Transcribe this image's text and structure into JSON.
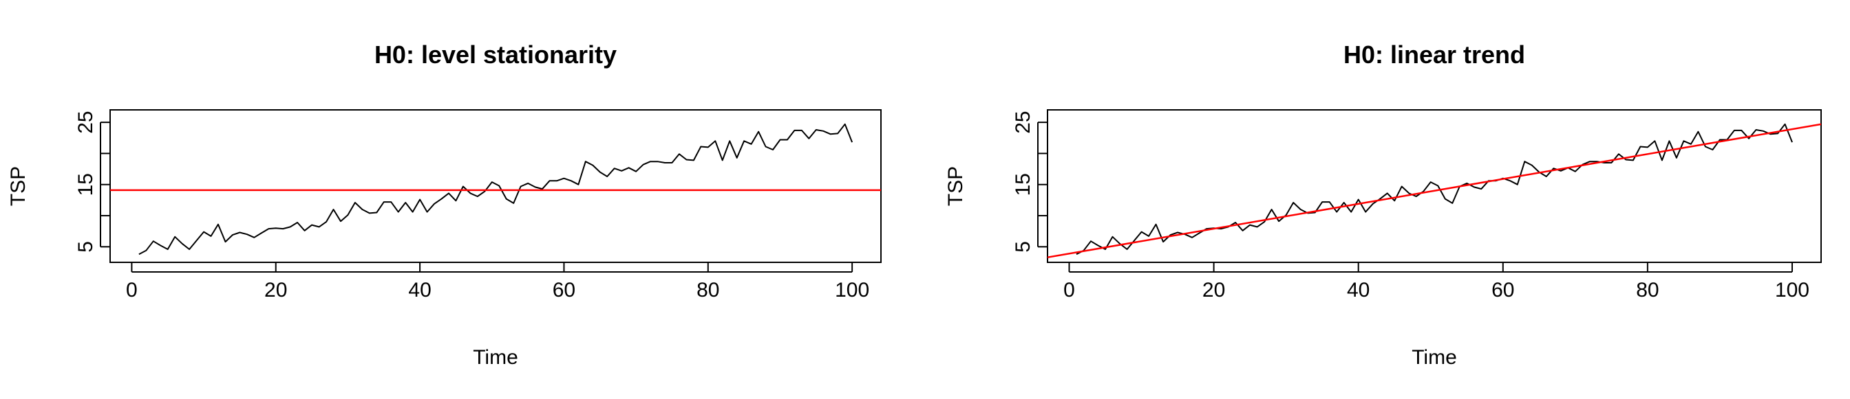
{
  "chart_data": [
    {
      "type": "line",
      "title": "H0: level stationarity",
      "xlabel": "Time",
      "ylabel": "TSP",
      "xlim": [
        -3,
        104
      ],
      "ylim": [
        2.5,
        27
      ],
      "xticks": [
        "0",
        "20",
        "40",
        "60",
        "80",
        "100"
      ],
      "yticks": [
        "5",
        "15",
        "25"
      ],
      "grid": false,
      "series": [
        {
          "color": "#000000",
          "x": [
            1,
            2,
            3,
            4,
            5,
            6,
            7,
            8,
            9,
            10,
            11,
            12,
            13,
            14,
            15,
            16,
            17,
            18,
            19,
            20,
            21,
            22,
            23,
            24,
            25,
            26,
            27,
            28,
            29,
            30,
            31,
            32,
            33,
            34,
            35,
            36,
            37,
            38,
            39,
            40,
            41,
            42,
            43,
            44,
            45,
            46,
            47,
            48,
            49,
            50,
            51,
            52,
            53,
            54,
            55,
            56,
            57,
            58,
            59,
            60,
            61,
            62,
            63,
            64,
            65,
            66,
            67,
            68,
            69,
            70,
            71,
            72,
            73,
            74,
            75,
            76,
            77,
            78,
            79,
            80,
            81,
            82,
            83,
            84,
            85,
            86,
            87,
            88,
            89,
            90,
            91,
            92,
            93,
            94,
            95,
            96,
            97,
            98,
            99,
            100
          ],
          "y": [
            3.8,
            4.4,
            5.9,
            5.2,
            4.6,
            6.6,
            5.5,
            4.6,
            6.0,
            7.4,
            6.7,
            8.6,
            5.8,
            6.9,
            7.3,
            7.0,
            6.5,
            7.2,
            7.9,
            8.0,
            7.9,
            8.2,
            8.9,
            7.6,
            8.5,
            8.2,
            9.0,
            11.0,
            9.1,
            10.1,
            12.1,
            11.0,
            10.4,
            10.5,
            12.2,
            12.2,
            10.6,
            12.1,
            10.6,
            12.6,
            10.6,
            11.9,
            12.7,
            13.6,
            12.4,
            14.7,
            13.6,
            13.1,
            13.9,
            15.4,
            14.8,
            12.7,
            12.0,
            14.7,
            15.2,
            14.6,
            14.3,
            15.6,
            15.6,
            16.0,
            15.6,
            15.0,
            18.7,
            18.1,
            17.0,
            16.3,
            17.6,
            17.2,
            17.7,
            17.1,
            18.2,
            18.7,
            18.7,
            18.5,
            18.5,
            19.9,
            19.0,
            18.9,
            21.1,
            21.0,
            22.0,
            18.9,
            22.0,
            19.3,
            22.0,
            21.5,
            23.5,
            21.1,
            20.6,
            22.2,
            22.2,
            23.7,
            23.7,
            22.4,
            23.8,
            23.6,
            23.1,
            23.2,
            24.7,
            21.8
          ]
        }
      ],
      "reference_line": {
        "kind": "horizontal",
        "y": 14.1,
        "color": "#ff0000"
      }
    },
    {
      "type": "line",
      "title": "H0: linear trend",
      "xlabel": "Time",
      "ylabel": "TSP",
      "xlim": [
        -3,
        104
      ],
      "ylim": [
        2.5,
        27
      ],
      "xticks": [
        "0",
        "20",
        "40",
        "60",
        "80",
        "100"
      ],
      "yticks": [
        "5",
        "15",
        "25"
      ],
      "grid": false,
      "series": [
        {
          "color": "#000000",
          "x": [
            1,
            2,
            3,
            4,
            5,
            6,
            7,
            8,
            9,
            10,
            11,
            12,
            13,
            14,
            15,
            16,
            17,
            18,
            19,
            20,
            21,
            22,
            23,
            24,
            25,
            26,
            27,
            28,
            29,
            30,
            31,
            32,
            33,
            34,
            35,
            36,
            37,
            38,
            39,
            40,
            41,
            42,
            43,
            44,
            45,
            46,
            47,
            48,
            49,
            50,
            51,
            52,
            53,
            54,
            55,
            56,
            57,
            58,
            59,
            60,
            61,
            62,
            63,
            64,
            65,
            66,
            67,
            68,
            69,
            70,
            71,
            72,
            73,
            74,
            75,
            76,
            77,
            78,
            79,
            80,
            81,
            82,
            83,
            84,
            85,
            86,
            87,
            88,
            89,
            90,
            91,
            92,
            93,
            94,
            95,
            96,
            97,
            98,
            99,
            100
          ],
          "y": [
            3.8,
            4.4,
            5.9,
            5.2,
            4.6,
            6.6,
            5.5,
            4.6,
            6.0,
            7.4,
            6.7,
            8.6,
            5.8,
            6.9,
            7.3,
            7.0,
            6.5,
            7.2,
            7.9,
            8.0,
            7.9,
            8.2,
            8.9,
            7.6,
            8.5,
            8.2,
            9.0,
            11.0,
            9.1,
            10.1,
            12.1,
            11.0,
            10.4,
            10.5,
            12.2,
            12.2,
            10.6,
            12.1,
            10.6,
            12.6,
            10.6,
            11.9,
            12.7,
            13.6,
            12.4,
            14.7,
            13.6,
            13.1,
            13.9,
            15.4,
            14.8,
            12.7,
            12.0,
            14.7,
            15.2,
            14.6,
            14.3,
            15.6,
            15.6,
            16.0,
            15.6,
            15.0,
            18.7,
            18.1,
            17.0,
            16.3,
            17.6,
            17.2,
            17.7,
            17.1,
            18.2,
            18.7,
            18.7,
            18.5,
            18.5,
            19.9,
            19.0,
            18.9,
            21.1,
            21.0,
            22.0,
            18.9,
            22.0,
            19.3,
            22.0,
            21.5,
            23.5,
            21.1,
            20.6,
            22.2,
            22.2,
            23.7,
            23.7,
            22.4,
            23.8,
            23.6,
            23.1,
            23.2,
            24.7,
            21.8
          ]
        }
      ],
      "reference_line": {
        "kind": "fitted",
        "intercept": 3.9,
        "slope": 0.2,
        "color": "#ff0000"
      }
    }
  ]
}
